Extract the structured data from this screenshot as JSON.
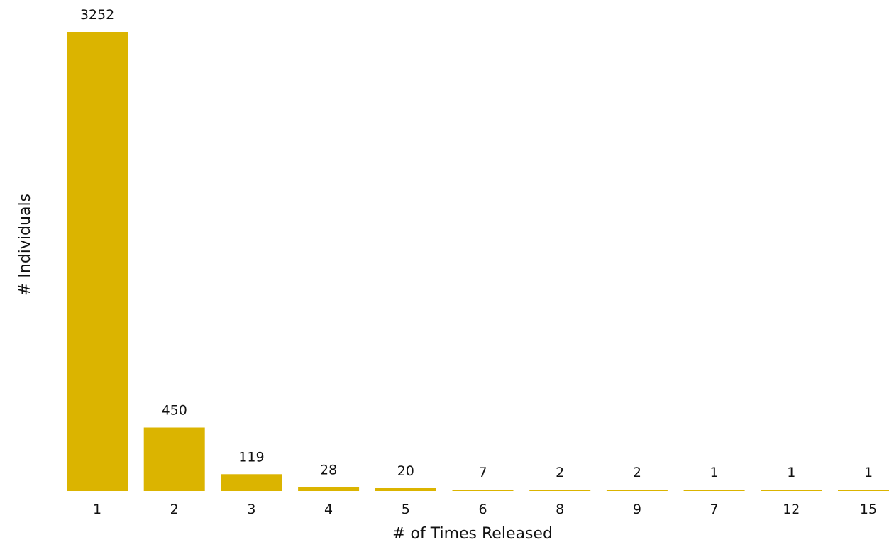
{
  "chart_data": {
    "type": "bar",
    "title": "",
    "xlabel": "# of Times Released",
    "ylabel": "# Individuals",
    "categories": [
      "1",
      "2",
      "3",
      "4",
      "5",
      "6",
      "8",
      "9",
      "7",
      "12",
      "15"
    ],
    "values": [
      3252,
      450,
      119,
      28,
      20,
      7,
      2,
      2,
      1,
      1,
      1
    ],
    "ylim": [
      0,
      3252
    ],
    "grid": false,
    "legend": "none",
    "colors": {
      "bar": "#dbb400",
      "text": "#111111",
      "background": "#ffffff"
    }
  }
}
